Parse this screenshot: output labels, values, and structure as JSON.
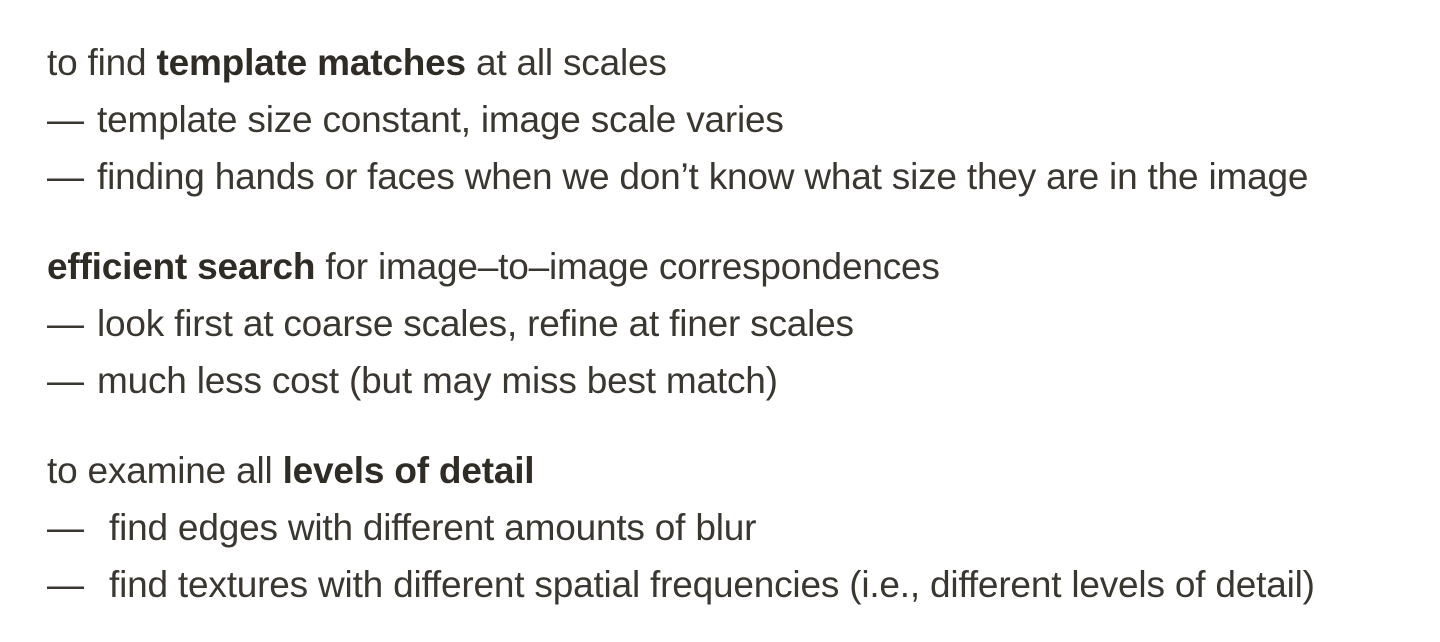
{
  "sections": [
    {
      "heading": {
        "pre": "to find ",
        "bold": "template matches",
        "post": " at all scales"
      },
      "bullets": [
        {
          "dash": "—",
          "text": "template size constant, image scale varies"
        },
        {
          "dash": "—",
          "text": "finding hands or faces when we don’t know what size they are in the image"
        }
      ]
    },
    {
      "heading": {
        "pre": "",
        "bold": "efficient search",
        "post": " for image–to–image correspondences"
      },
      "bullets": [
        {
          "dash": "—",
          "text": "look first at coarse scales, refine at finer scales"
        },
        {
          "dash": "—",
          "text": "much less cost (but may miss best match)"
        }
      ]
    },
    {
      "heading": {
        "pre": "to examine all ",
        "bold": "levels of detail",
        "post": ""
      },
      "bullets": [
        {
          "dash": "—",
          "text": "find edges with different amounts of blur"
        },
        {
          "dash": "—",
          "text": "find textures with different spatial frequencies (i.e., different levels of detail)"
        }
      ]
    }
  ]
}
